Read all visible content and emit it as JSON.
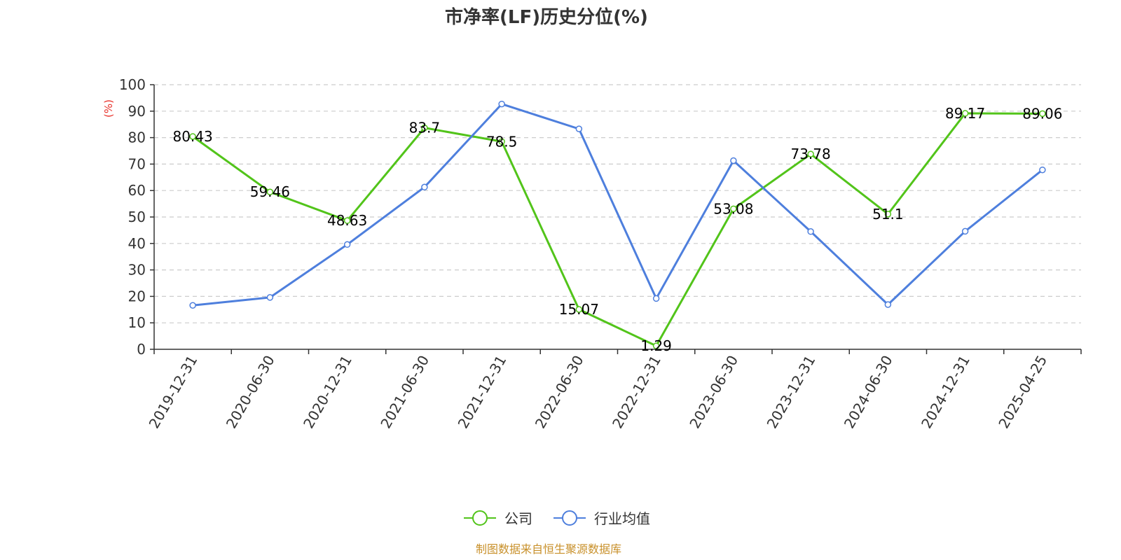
{
  "chart_data": {
    "type": "line",
    "title": "市净率(LF)历史分位(%)",
    "ylabel": "(%)",
    "xlabel": "",
    "ylim": [
      0,
      100
    ],
    "yticks": [
      0,
      10,
      20,
      30,
      40,
      50,
      60,
      70,
      80,
      90,
      100
    ],
    "categories": [
      "2019-12-31",
      "2020-06-30",
      "2020-12-31",
      "2021-06-30",
      "2021-12-31",
      "2022-06-30",
      "2022-12-31",
      "2023-06-30",
      "2023-12-31",
      "2024-06-30",
      "2024-12-31",
      "2025-04-25"
    ],
    "series": [
      {
        "name": "公司",
        "color": "#52c41a",
        "show_labels": true,
        "values": [
          80.43,
          59.46,
          48.63,
          83.7,
          78.5,
          15.07,
          1.29,
          53.08,
          73.78,
          51.1,
          89.17,
          89.06
        ]
      },
      {
        "name": "行业均值",
        "color": "#4e7fdd",
        "show_labels": false,
        "values": [
          16.6,
          19.6,
          39.6,
          61.3,
          92.7,
          83.3,
          19.2,
          71.3,
          44.5,
          16.9,
          44.6,
          67.8
        ]
      }
    ],
    "grid": true,
    "legend_position": "bottom-center"
  },
  "colors": {
    "ylabel": "#e8312a",
    "source": "#c8902a",
    "grid": "#cccccc",
    "axis": "#333333"
  },
  "source_text": "制图数据来自恒生聚源数据库"
}
